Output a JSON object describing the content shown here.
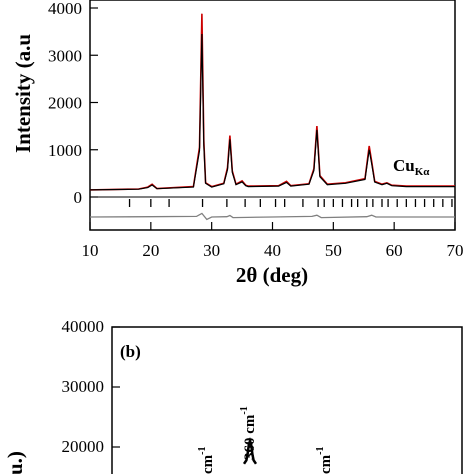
{
  "chart_data": [
    {
      "type": "line",
      "panel_label": "",
      "xlabel": "2θ (deg)",
      "ylabel": "Intensity (a.u",
      "xlim": [
        10,
        70
      ],
      "ylim": [
        0,
        4000
      ],
      "x_ticks": [
        10,
        20,
        30,
        40,
        50,
        60,
        70
      ],
      "y_ticks": [
        0,
        1000,
        2000,
        3000,
        4000
      ],
      "annotation_main": "Cu",
      "annotation_sub": "Kα",
      "grid": false,
      "series": [
        {
          "color": "#cc0000",
          "x": [
            10,
            18,
            19.5,
            20.2,
            21,
            27,
            28.0,
            28.4,
            28.7,
            29.0,
            30,
            32,
            32.6,
            33.0,
            33.4,
            34,
            35.0,
            35.6,
            36,
            41,
            42.3,
            43,
            46,
            46.8,
            47.3,
            47.8,
            49,
            52,
            55.2,
            55.9,
            56.3,
            56.8,
            58,
            58.8,
            59.6,
            62,
            70
          ],
          "y": [
            150,
            170,
            210,
            270,
            180,
            220,
            1050,
            3880,
            1200,
            300,
            220,
            290,
            620,
            1300,
            550,
            270,
            340,
            250,
            230,
            240,
            330,
            240,
            280,
            600,
            1500,
            450,
            270,
            300,
            390,
            1080,
            750,
            330,
            270,
            300,
            250,
            230,
            230
          ]
        },
        {
          "color": "#000000",
          "x": [
            10,
            18,
            19.5,
            20.2,
            21,
            27,
            28.0,
            28.4,
            28.7,
            29.0,
            30,
            32,
            32.6,
            33.0,
            33.4,
            34,
            35.0,
            35.6,
            36,
            41,
            42.3,
            43,
            46,
            46.8,
            47.3,
            47.8,
            49,
            52,
            55.2,
            55.9,
            56.3,
            56.8,
            58,
            58.8,
            59.6,
            62,
            70
          ],
          "y": [
            150,
            165,
            200,
            255,
            175,
            210,
            980,
            3450,
            1100,
            290,
            210,
            280,
            580,
            1220,
            520,
            260,
            320,
            240,
            220,
            230,
            310,
            230,
            270,
            560,
            1420,
            430,
            260,
            290,
            370,
            1000,
            700,
            315,
            260,
            290,
            240,
            220,
            220
          ]
        }
      ],
      "bragg_positions": [
        16.5,
        20,
        23,
        28.5,
        32.5,
        35.5,
        38,
        40.5,
        42,
        45,
        47.5,
        48.5,
        50,
        51.5,
        53,
        54,
        55.5,
        56.5,
        58,
        59,
        60.5,
        62,
        63.5,
        65,
        66.5,
        68,
        69.5
      ],
      "difference_curve": {
        "color": "#808080",
        "x": [
          10,
          20,
          27.5,
          28.4,
          29.2,
          30,
          32.5,
          33.0,
          33.5,
          40,
          46.5,
          47.3,
          48,
          55.5,
          56.3,
          57,
          70
        ],
        "y": [
          0,
          5,
          10,
          60,
          -40,
          0,
          5,
          25,
          -10,
          0,
          10,
          30,
          -10,
          5,
          30,
          0,
          0
        ]
      }
    },
    {
      "type": "line",
      "panel_label": "(b)",
      "ylabel": "u.)",
      "ylim": [
        0,
        40000
      ],
      "y_ticks": [
        20000,
        30000,
        40000
      ],
      "peak_labels": [
        "360 cm",
        "cm",
        "cm"
      ],
      "peak_label_superscript": "-1",
      "series": [
        {
          "color": "#000000",
          "x": [
            355,
            357,
            358,
            359,
            360,
            361,
            362,
            363,
            365
          ],
          "y": [
            17200,
            17800,
            18800,
            20400,
            21000,
            20400,
            18800,
            17800,
            17200
          ]
        }
      ]
    }
  ]
}
